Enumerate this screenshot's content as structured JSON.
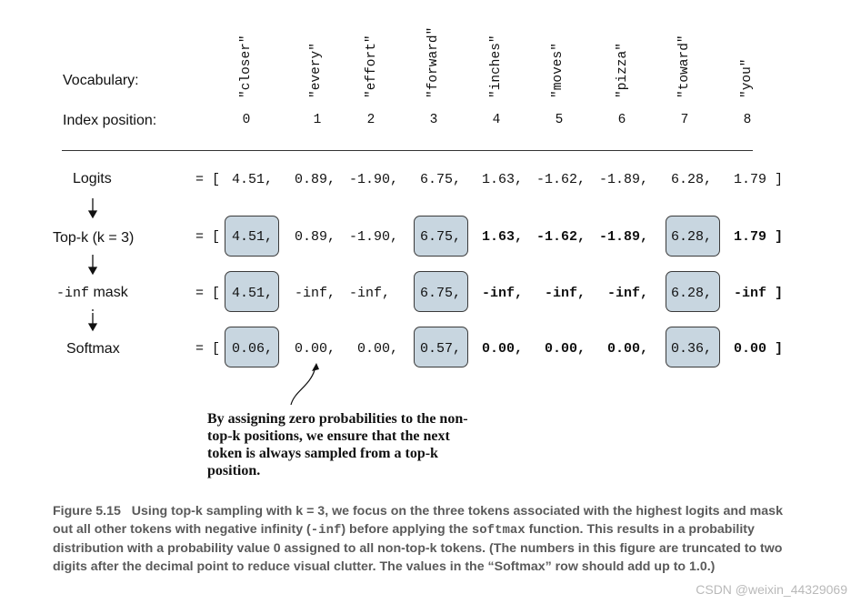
{
  "vocabulary_label": "Vocabulary:",
  "index_label": "Index position:",
  "vocab": [
    "\"closer\"",
    "\"every\"",
    "\"effort\"",
    "\"forward\"",
    "\"inches\"",
    "\"moves\"",
    "\"pizza\"",
    "\"toward\"",
    "\"you\""
  ],
  "indices": [
    "0",
    "1",
    "2",
    "3",
    "4",
    "5",
    "6",
    "7",
    "8"
  ],
  "rows": [
    {
      "label": "Logits",
      "eq": "= [",
      "values": [
        "4.51,",
        "0.89,",
        "-1.90,",
        "6.75,",
        "1.63,",
        "-1.62,",
        "-1.89,",
        "6.28,",
        "1.79 ]"
      ]
    },
    {
      "label": "Top-k (k = 3)",
      "eq": "= [",
      "values": [
        "4.51,",
        "0.89,",
        "-1.90,",
        "6.75,",
        "1.63,",
        "-1.62,",
        "-1.89,",
        "6.28,",
        "1.79 ]"
      ]
    },
    {
      "label_mono": "-inf",
      "label": " mask",
      "eq": "= [",
      "values": [
        "4.51,",
        "-inf,",
        "-inf,",
        "6.75,",
        "-inf,",
        "-inf,",
        "-inf,",
        "6.28,",
        "-inf ]"
      ]
    },
    {
      "label": "Softmax",
      "eq": "= [",
      "values": [
        "0.06,",
        "0.00,",
        "0.00,",
        "0.57,",
        "0.00,",
        "0.00,",
        "0.00,",
        "0.36,",
        "0.00 ]"
      ]
    }
  ],
  "note": "By assigning zero probabilities to the non-top-k positions, we ensure that the next token is always sampled from a top-k position.",
  "caption": {
    "figure": "Figure 5.15",
    "part1": "Using top-k sampling with k = 3, we focus on the three tokens associated with the highest logits and mask out all other tokens with negative infinity (",
    "inf": "-inf",
    "part2": ") before applying the ",
    "softmax": "softmax",
    "part3": " function. This results in a probability distribution with a probability value 0 assigned to all non-top-k tokens. (The numbers in this figure are truncated to two digits after the decimal point to reduce visual clutter. The values in the “Softmax” row should add up to 1.0.)"
  },
  "watermark": "CSDN @weixin_44329069"
}
